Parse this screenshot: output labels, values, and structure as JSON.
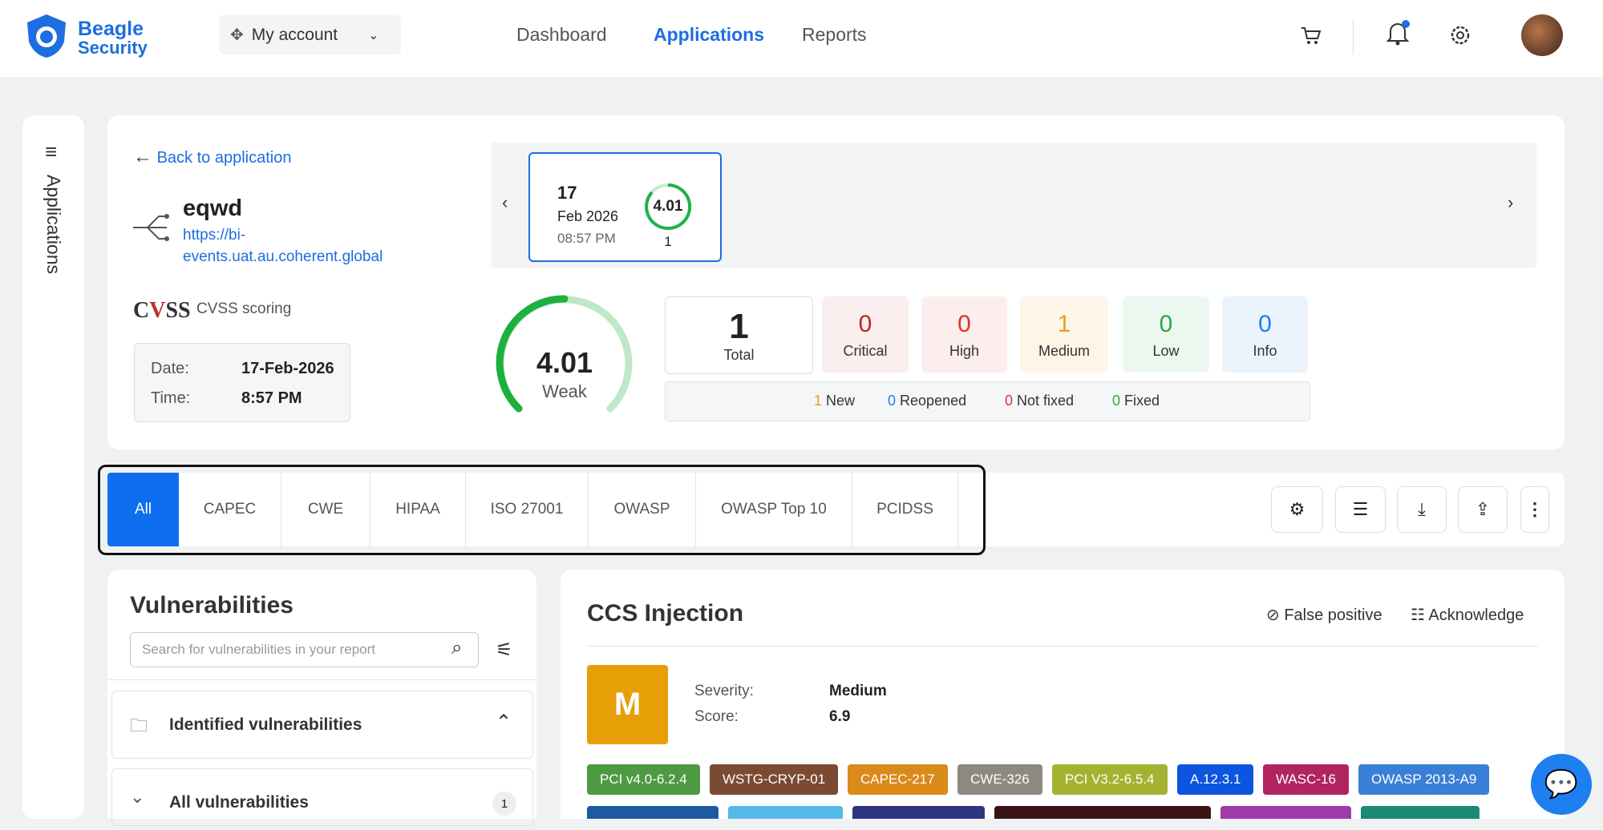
{
  "header": {
    "logo_line1": "Beagle",
    "logo_line2": "Security",
    "account": "My account",
    "nav": [
      "Dashboard",
      "Applications",
      "Reports"
    ]
  },
  "sidebar": {
    "label": "Applications"
  },
  "summary": {
    "back": "Back to application",
    "app_name": "eqwd",
    "url": "https://bi-events.uat.au.coherent.global",
    "cvss_label": "CVSS scoring",
    "date_label": "Date:",
    "date": "17-Feb-2026",
    "time_label": "Time:",
    "time": "8:57 PM"
  },
  "scan": {
    "day": "17",
    "month": "Feb 2026",
    "time": "08:57 PM",
    "score": "4.01",
    "count": "1"
  },
  "gauge": {
    "score": "4.01",
    "rating": "Weak"
  },
  "counts": [
    {
      "value": "1",
      "label": "Total"
    },
    {
      "value": "0",
      "label": "Critical"
    },
    {
      "value": "0",
      "label": "High"
    },
    {
      "value": "1",
      "label": "Medium"
    },
    {
      "value": "0",
      "label": "Low"
    },
    {
      "value": "0",
      "label": "Info"
    }
  ],
  "status": [
    {
      "value": "1",
      "label": "New"
    },
    {
      "value": "0",
      "label": "Reopened"
    },
    {
      "value": "0",
      "label": "Not fixed"
    },
    {
      "value": "0",
      "label": "Fixed"
    }
  ],
  "tabs": [
    "All",
    "CAPEC",
    "CWE",
    "HIPAA",
    "ISO 27001",
    "OWASP",
    "OWASP Top 10",
    "PCIDSS"
  ],
  "vulnerabilities": {
    "title": "Vulnerabilities",
    "search_placeholder": "Search for vulnerabilities in your report",
    "group": "Identified vulnerabilities",
    "all": "All vulnerabilities",
    "all_count": "1"
  },
  "detail": {
    "title": "CCS Injection",
    "false_positive": "False positive",
    "acknowledge": "Acknowledge",
    "badge": "M",
    "severity_label": "Severity:",
    "severity": "Medium",
    "score_label": "Score:",
    "score": "6.9",
    "tags": [
      "PCI v4.0-6.2.4",
      "WSTG-CRYP-01",
      "CAPEC-217",
      "CWE-326",
      "PCI V3.2-6.5.4",
      "A.12.3.1",
      "WASC-16",
      "OWASP 2013-A9"
    ]
  }
}
